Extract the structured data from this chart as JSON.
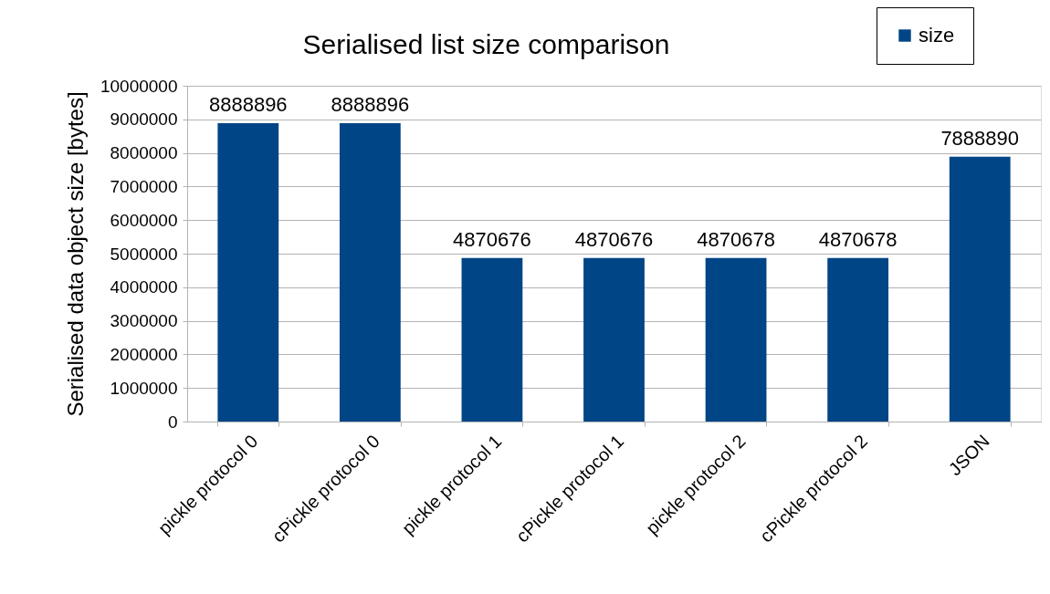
{
  "chart_data": {
    "type": "bar",
    "title": "Serialised list size comparison",
    "ylabel": "Serialised data object size [bytes]",
    "categories": [
      "pickle protocol 0",
      "cPickle protocol 0",
      "pickle protocol 1",
      "cPickle protocol 1",
      "pickle protocol 2",
      "cPickle protocol 2",
      "JSON"
    ],
    "series": [
      {
        "name": "size",
        "color": "#004586",
        "values": [
          8888896,
          8888896,
          4870676,
          4870676,
          4870678,
          4870678,
          7888890
        ]
      }
    ],
    "ylim": [
      0,
      10000000
    ],
    "yticks": [
      0,
      1000000,
      2000000,
      3000000,
      4000000,
      5000000,
      6000000,
      7000000,
      8000000,
      9000000,
      10000000
    ],
    "grid": "y",
    "legend": "top right",
    "data_labels": true
  }
}
